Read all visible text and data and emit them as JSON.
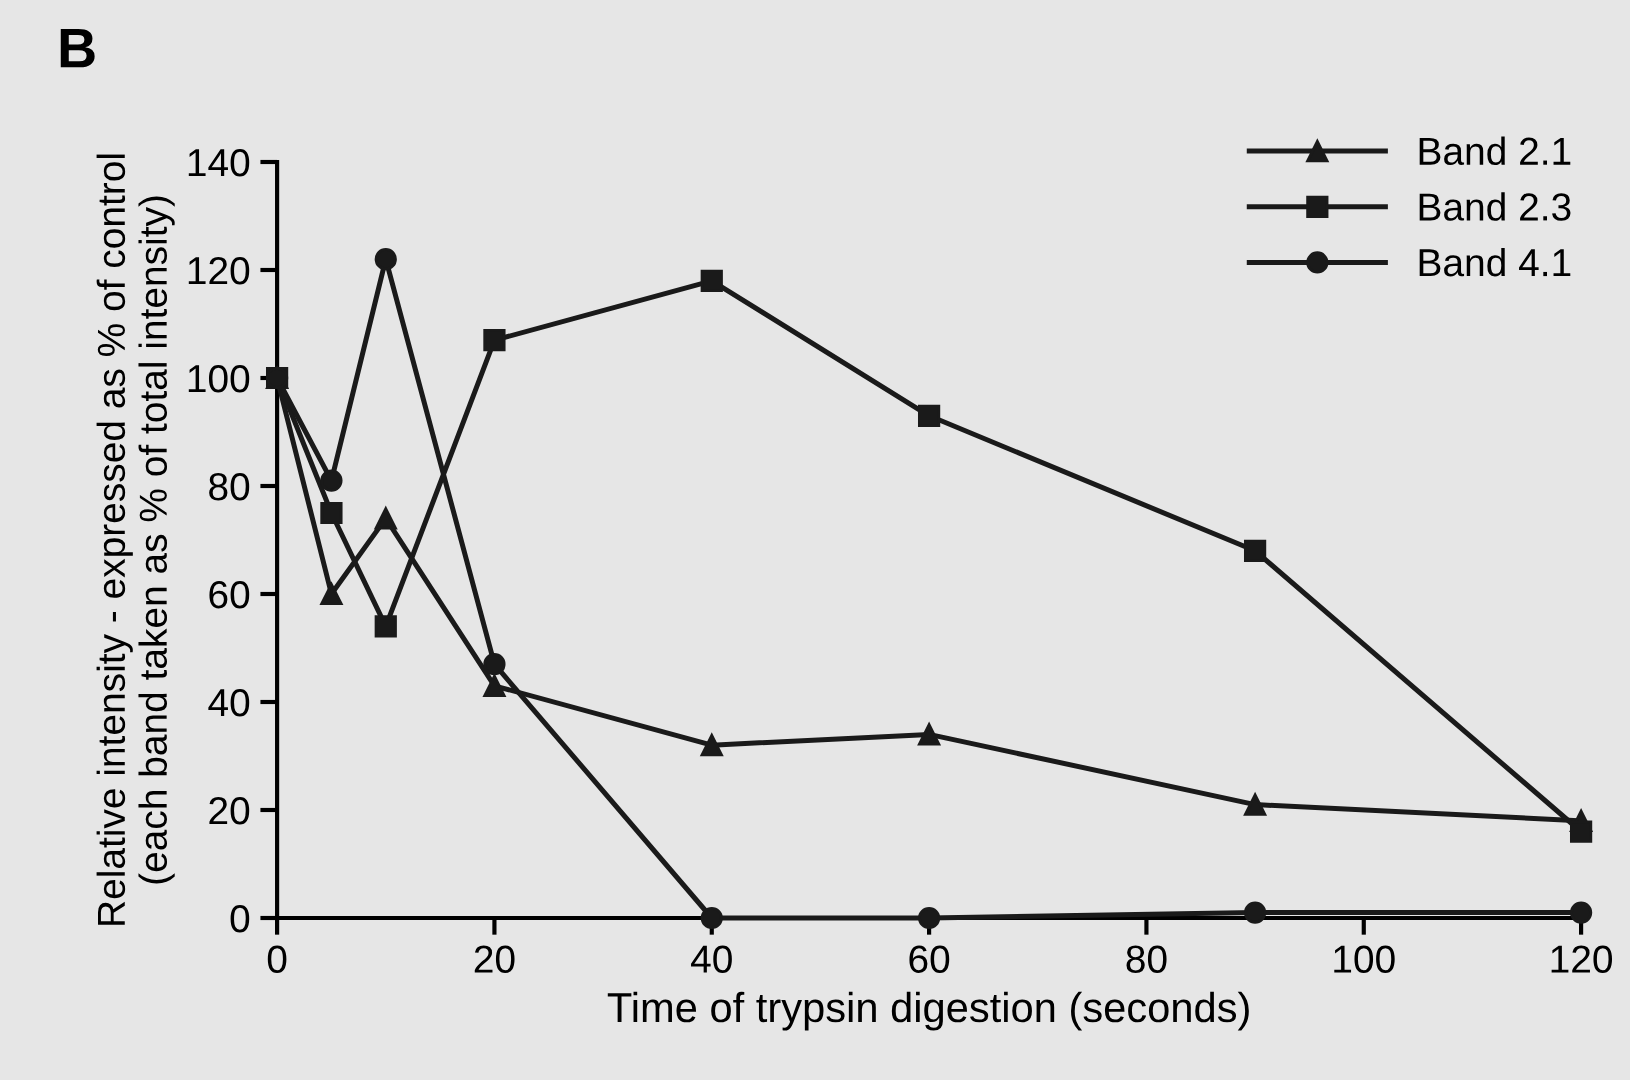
{
  "chart_data": {
    "type": "line",
    "xlabel": "Time of trypsin digestion (seconds)",
    "ylabel": "Relative intensity - expressed as % of control\n(each band taken as % of total intensity)",
    "annotations": [
      "B"
    ],
    "x": [
      0,
      5,
      10,
      20,
      40,
      60,
      90,
      120
    ],
    "series": [
      {
        "name": "Band 2.1",
        "color": "#1a1a1a",
        "marker": "triangle",
        "values": [
          100,
          60,
          74,
          43,
          32,
          34,
          21,
          18
        ]
      },
      {
        "name": "Band 2.3",
        "color": "#1a1a1a",
        "marker": "square",
        "values": [
          100,
          75,
          54,
          107,
          118,
          93,
          68,
          16
        ]
      },
      {
        "name": "Band 4.1",
        "color": "#1a1a1a",
        "marker": "circle",
        "values": [
          100,
          81,
          122,
          47,
          0,
          0,
          1,
          1
        ]
      }
    ],
    "xlim": [
      0,
      120
    ],
    "xticks": [
      0,
      20,
      40,
      60,
      80,
      100,
      120
    ],
    "ylim": [
      0,
      140
    ],
    "yticks": [
      0,
      20,
      40,
      60,
      80,
      100,
      120,
      140
    ],
    "grid": false,
    "legend": "top right",
    "line_style": "solid"
  }
}
